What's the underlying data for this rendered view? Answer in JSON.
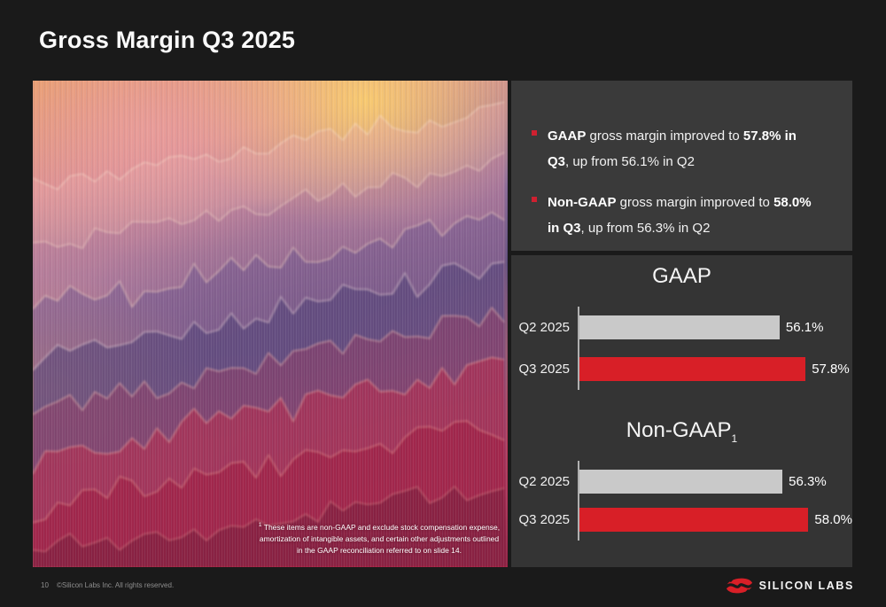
{
  "slide": {
    "title": "Gross Margin Q3 2025",
    "footer": {
      "page_number": "10",
      "copyright": "©Silicon Labs Inc. All rights reserved."
    },
    "logo": {
      "wordmark": "SILICON LABS",
      "brand_color": "#d91f27"
    }
  },
  "bullets": {
    "bullet_color": "#cf2030",
    "items": [
      {
        "segments": [
          {
            "t": "GAAP",
            "b": true
          },
          {
            "t": " gross margin improved to ",
            "b": false
          },
          {
            "t": "57.8% in",
            "b": true
          },
          {
            "br": true
          },
          {
            "t": "Q3",
            "b": true
          },
          {
            "t": ", up from 56.1% in Q2",
            "b": false
          }
        ]
      },
      {
        "segments": [
          {
            "t": "Non-GAAP",
            "b": true
          },
          {
            "t": " gross margin improved to ",
            "b": false
          },
          {
            "t": "58.0%",
            "b": true
          },
          {
            "br": true
          },
          {
            "t": "in Q3",
            "b": true
          },
          {
            "t": ", up from 56.3% in Q2",
            "b": false
          }
        ]
      }
    ]
  },
  "artwork": {
    "description": "abstract 3D ridged terrain render, orange-purple-red",
    "footnote": {
      "sup": "1",
      "text": "These items are non-GAAP and exclude stock compensation expense, amortization of intangible assets, and certain other adjustments outlined in the GAAP reconciliation referred to on slide 14."
    }
  },
  "chart_data": [
    {
      "type": "bar",
      "orientation": "horizontal",
      "title": "GAAP",
      "categories": [
        "Q2 2025",
        "Q3 2025"
      ],
      "values": [
        56.1,
        57.8
      ],
      "value_labels": [
        "56.1%",
        "57.8%"
      ],
      "bar_colors": [
        "#c9c9c9",
        "#d81f27"
      ],
      "xlim": [
        43,
        60
      ],
      "grid": false,
      "legend": false
    },
    {
      "type": "bar",
      "orientation": "horizontal",
      "title": "Non-GAAP",
      "title_subscript": "1",
      "categories": [
        "Q2 2025",
        "Q3 2025"
      ],
      "values": [
        56.3,
        58.0
      ],
      "value_labels": [
        "56.3%",
        "58.0%"
      ],
      "bar_colors": [
        "#c9c9c9",
        "#d81f27"
      ],
      "xlim": [
        43,
        60
      ],
      "grid": false,
      "legend": false
    }
  ],
  "colors": {
    "background": "#1a1a1a",
    "bullet_panel": "#3a3a3a",
    "chart_panel": "#343434",
    "axis": "#b0b0b0",
    "red": "#d81f27",
    "gray_bar": "#c9c9c9",
    "muted_text": "#8f8f8f"
  }
}
